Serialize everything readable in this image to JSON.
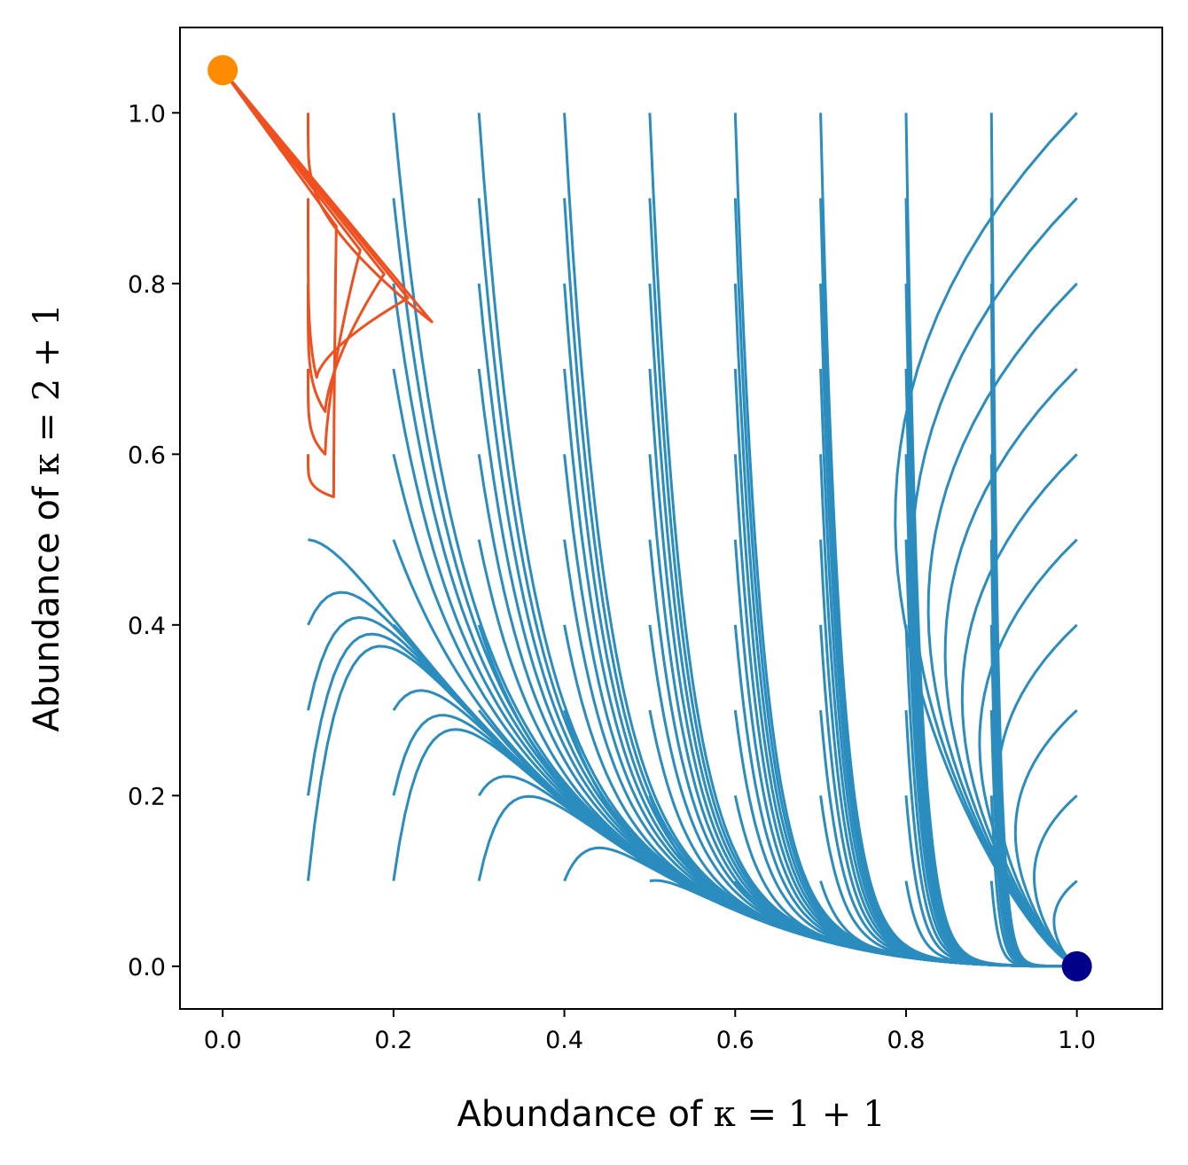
{
  "chart_data": {
    "type": "line",
    "xlabel_text": "Abundance of ",
    "xlabel_math": "κ = 1 + 1",
    "ylabel_text": "Abundance of ",
    "ylabel_math": "κ = 2 + 1",
    "xlim": [
      -0.05,
      1.1
    ],
    "ylim": [
      -0.05,
      1.1
    ],
    "x_ticks": [
      "0.0",
      "0.2",
      "0.4",
      "0.6",
      "0.8",
      "1.0"
    ],
    "y_ticks": [
      "0.0",
      "0.2",
      "0.4",
      "0.6",
      "0.8",
      "1.0"
    ],
    "grid": false,
    "colors": {
      "blue_trajectory": "#2b8cbe",
      "red_trajectory": "#f05020",
      "attractor_a": "#ff8c00",
      "attractor_b": "#00008b"
    },
    "series": [
      {
        "color_key": "blue_trajectory",
        "description": "trajectories from initial grid (x0 in 0.1–1.0, y0 in 0.1–1.0) converging to (1, 0)"
      },
      {
        "color_key": "red_trajectory",
        "description": "trajectories converging to (0, 1.05)"
      }
    ],
    "initial_conditions_x": [
      0.1,
      0.2,
      0.3,
      0.4,
      0.5,
      0.6,
      0.7,
      0.8,
      0.9,
      1.0
    ],
    "initial_conditions_y": [
      0.1,
      0.2,
      0.3,
      0.4,
      0.5,
      0.6,
      0.7,
      0.8,
      0.9,
      1.0
    ],
    "red_initial_conditions": [
      [
        0.1,
        0.6
      ],
      [
        0.1,
        0.7
      ],
      [
        0.1,
        0.8
      ],
      [
        0.1,
        0.9
      ],
      [
        0.1,
        1.0
      ]
    ],
    "red_turning_points": [
      [
        0.13,
        0.55
      ],
      [
        0.12,
        0.6
      ],
      [
        0.12,
        0.65
      ],
      [
        0.11,
        0.69
      ],
      [
        0.105,
        0.92
      ]
    ],
    "red_tip": [
      0.245,
      0.755
    ],
    "fixed_points": [
      {
        "x": 0.0,
        "y": 1.05,
        "color_key": "attractor_a"
      },
      {
        "x": 1.0,
        "y": 0.0,
        "color_key": "attractor_b"
      }
    ]
  }
}
